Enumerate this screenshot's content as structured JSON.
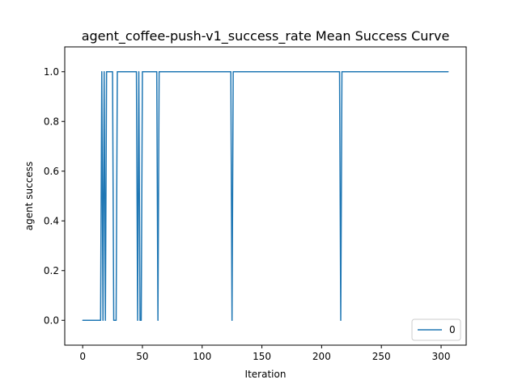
{
  "chart_data": {
    "type": "line",
    "title": "agent_coffee-push-v1_success_rate Mean Success Curve",
    "xlabel": "Iteration",
    "ylabel": "agent success",
    "xlim": [
      -15,
      321
    ],
    "ylim": [
      -0.1,
      1.1
    ],
    "xticks": [
      0,
      50,
      100,
      150,
      200,
      250,
      300
    ],
    "xtick_labels": [
      "0",
      "50",
      "100",
      "150",
      "200",
      "250",
      "300"
    ],
    "yticks": [
      0.0,
      0.2,
      0.4,
      0.6,
      0.8,
      1.0
    ],
    "ytick_labels": [
      "0.0",
      "0.2",
      "0.4",
      "0.6",
      "0.8",
      "1.0"
    ],
    "grid": false,
    "legend_position": "lower-right",
    "colors": {
      "series": "#1f77b4"
    },
    "series": [
      {
        "name": "0",
        "x": [
          0,
          15,
          16,
          17,
          18,
          19,
          20,
          21,
          25,
          26,
          27,
          28,
          29,
          30,
          45,
          46,
          47,
          48,
          49,
          50,
          51,
          52,
          62,
          63,
          64,
          124,
          125,
          126,
          215,
          216,
          217,
          306
        ],
        "y": [
          0,
          0,
          1,
          0,
          1,
          0,
          1,
          1,
          1,
          0,
          0,
          0,
          1,
          1,
          1,
          0,
          1,
          0,
          0,
          1,
          1,
          1,
          1,
          0,
          1,
          1,
          0,
          1,
          1,
          0,
          1,
          1
        ]
      }
    ]
  }
}
